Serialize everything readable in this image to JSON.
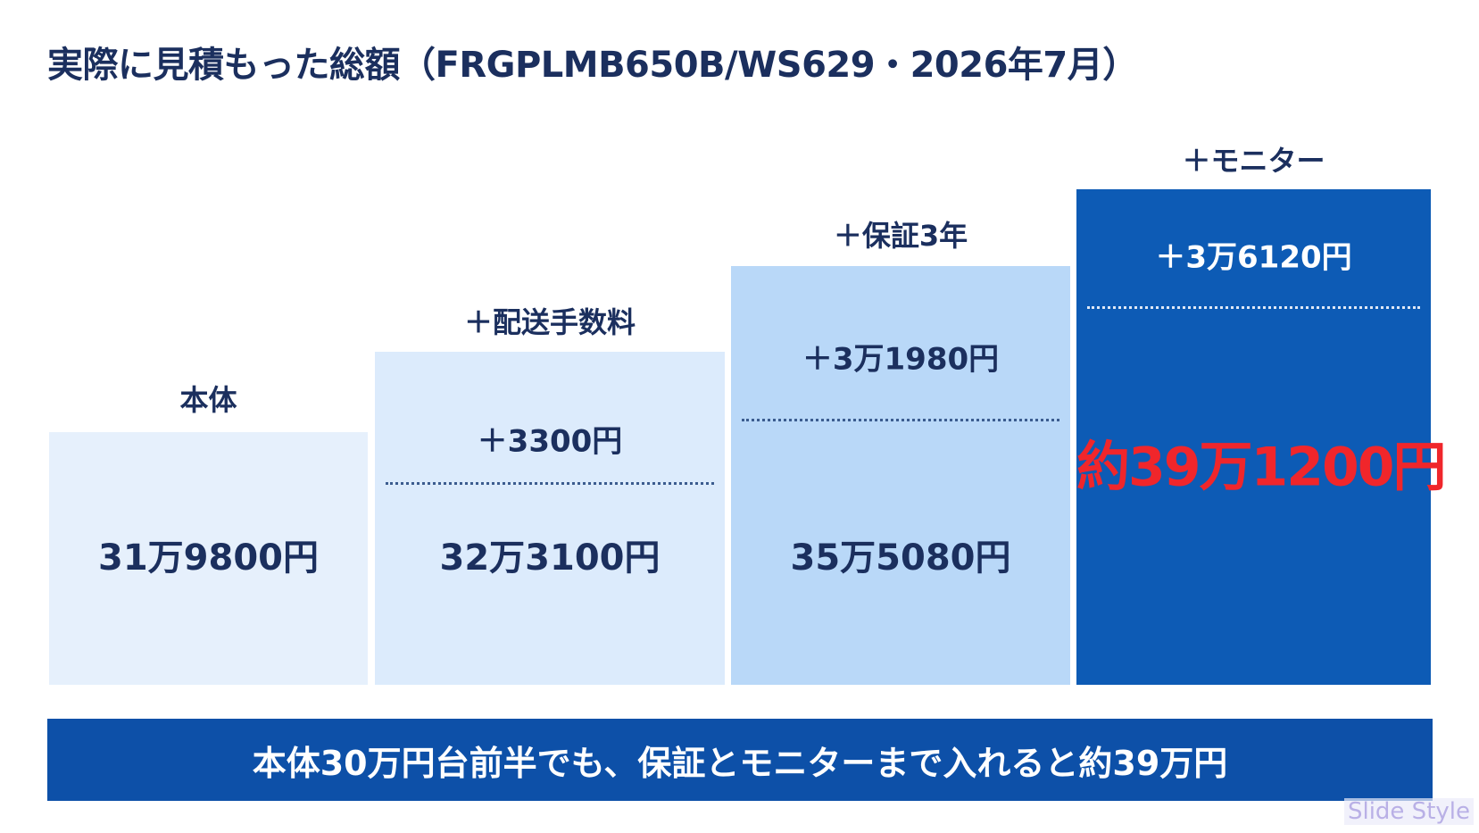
{
  "title": "実際に見積もった総額（FRGPLMB650B/WS629・2026年7月）",
  "steps": [
    {
      "label": "本体",
      "total": "31万9800円"
    },
    {
      "label": "＋配送手数料",
      "addition": "＋3300円",
      "total": "32万3100円"
    },
    {
      "label": "＋保証3年",
      "addition": "＋3万1980円",
      "total": "35万5080円"
    },
    {
      "label": "＋モニター",
      "addition": "＋3万6120円",
      "total": "約39万1200円"
    }
  ],
  "banner": "本体30万円台前半でも、保証とモニターまで入れると約39万円",
  "watermark": "Slide Style"
}
